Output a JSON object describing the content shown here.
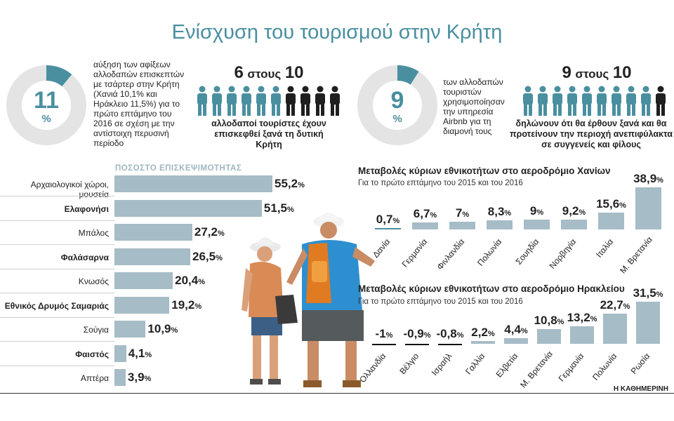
{
  "title": "Ενίσχυση του τουρισμού στην Κρήτη",
  "colors": {
    "accent": "#4a8fa0",
    "bar": "#a6bcc6",
    "person_dark": "#1f1f1f",
    "ring": "#e4e4e4"
  },
  "donut1": {
    "value": "11",
    "unit": "%",
    "fraction": 0.11,
    "text": "αύξηση των αφίξεων αλλοδαπών επισκεπτών με τσάρτερ στην Κρήτη (Χανιά 10,1% και Ηράκλειο 11,5%) για το πρώτο επτάμηνο του 2016 σε σχέση με την αντίστοιχη περυσινή περίοδο"
  },
  "ratio1": {
    "num": "6",
    "mid": "στους",
    "den": "10",
    "highlighted": 6,
    "total": 10,
    "caption": "αλλοδαποί τουρίστες έχουν επισκεφθεί ξανά τη δυτική Κρήτη"
  },
  "donut2": {
    "value": "9",
    "unit": "%",
    "fraction": 0.09,
    "text": "των αλλοδαπών τουριστών χρησιμοποίησαν την υπηρεσία Airbnb για τη διαμονή τους"
  },
  "ratio2": {
    "num": "9",
    "mid": "στους",
    "den": "10",
    "highlighted": 9,
    "total": 10,
    "caption": "δηλώνουν ότι θα έρθουν ξανά και θα προτείνουν την περιοχή ανεπιφύλακτα σε συγγενείς και φίλους"
  },
  "chart_data": [
    {
      "type": "bar",
      "orientation": "horizontal",
      "title": "ΠΟΣΟΣΤΟ ΕΠΙΣΚΕΨΙΜΟΤΗΤΑΣ",
      "categories": [
        "Αρχαιολογικοί χώροι, μουσεία",
        "Ελαφονήσι",
        "Μπάλος",
        "Φαλάσαρνα",
        "Κνωσός",
        "Εθνικός Δρυμός Σαμαριάς",
        "Σούγια",
        "Φαιστός",
        "Απτέρα"
      ],
      "bold": [
        false,
        true,
        false,
        true,
        false,
        true,
        false,
        true,
        false
      ],
      "values": [
        55.2,
        51.5,
        27.2,
        26.5,
        20.4,
        19.2,
        10.9,
        4.1,
        3.9
      ],
      "labels": [
        "55,2",
        "51,5",
        "27,2",
        "26,5",
        "20,4",
        "19,2",
        "10,9",
        "4,1",
        "3,9"
      ],
      "unit": "%"
    },
    {
      "type": "bar",
      "title": "Μεταβολές κύριων εθνικοτήτων στο αεροδρόμιο Χανίων",
      "subtitle": "Για το πρώτο επτάμηνο του 2015 και του 2016",
      "categories": [
        "Δανία",
        "Γερμανία",
        "Φινλανδία",
        "Πολωνία",
        "Σουηδία",
        "Νορβηγία",
        "Ιταλία",
        "Μ. Βρετανία"
      ],
      "values": [
        0.7,
        6.7,
        7,
        8.3,
        9,
        9.2,
        15.6,
        38.9
      ],
      "labels": [
        "0,7",
        "6,7",
        "7",
        "8,3",
        "9",
        "9,2",
        "15,6",
        "38,9"
      ],
      "unit": "%"
    },
    {
      "type": "bar",
      "title": "Μεταβολές κύριων εθνικοτήτων στο αεροδρόμιο Ηρακλείου",
      "subtitle": "Για το πρώτο επτάμηνο του 2015 και του 2016",
      "categories": [
        "Ολλανδία",
        "Βέλγιο",
        "Ισραήλ",
        "Γαλλία",
        "Ελβετία",
        "Μ. Βρετανία",
        "Γερμανία",
        "Πολωνία",
        "Ρωσία"
      ],
      "values": [
        -1,
        -0.9,
        -0.8,
        2.2,
        4.4,
        10.8,
        13.2,
        22.7,
        31.5
      ],
      "labels": [
        "-1",
        "-0,9",
        "-0,8",
        "2,2",
        "4,4",
        "10,8",
        "13,2",
        "22,7",
        "31,5"
      ],
      "unit": "%"
    }
  ],
  "source": "Η ΚΑΘΗΜΕΡΙΝΗ"
}
